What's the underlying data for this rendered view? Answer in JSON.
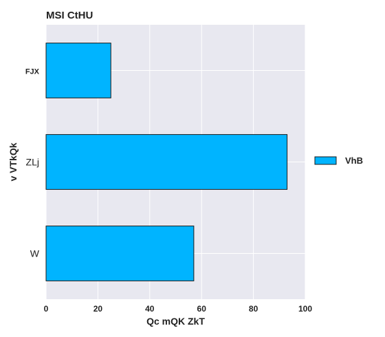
{
  "chart_data": {
    "type": "bar",
    "orientation": "horizontal",
    "title": "MSI CtHU",
    "xlabel": "Qc mQK ZkT",
    "ylabel": "v VTkQk",
    "categories": [
      "FJX",
      "ZLj",
      "W"
    ],
    "series": [
      {
        "name": "VhB",
        "values": [
          25,
          93,
          57
        ],
        "color": "#00b4ff"
      }
    ],
    "xlim": [
      0,
      100
    ],
    "xticks": [
      0,
      20,
      40,
      60,
      80,
      100
    ],
    "grid": true,
    "legend_position": "right",
    "plot_background": "#e8e8f0",
    "bar_edge_color": "#1a1a1a"
  }
}
